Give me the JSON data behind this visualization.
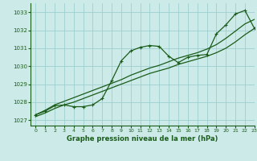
{
  "title": "Graphe pression niveau de la mer (hPa)",
  "bg_color": "#cceae7",
  "plot_bg_color": "#cceae7",
  "grid_color": "#9ecece",
  "line_color": "#1a5c1a",
  "ylim": [
    1026.7,
    1033.5
  ],
  "xlim": [
    -0.5,
    23
  ],
  "yticks": [
    1027,
    1028,
    1029,
    1030,
    1031,
    1032,
    1033
  ],
  "xticks": [
    0,
    1,
    2,
    3,
    4,
    5,
    6,
    7,
    8,
    9,
    10,
    11,
    12,
    13,
    14,
    15,
    16,
    17,
    18,
    19,
    20,
    21,
    22,
    23
  ],
  "x_data": [
    0,
    1,
    2,
    3,
    4,
    5,
    6,
    7,
    8,
    9,
    10,
    11,
    12,
    13,
    14,
    15,
    16,
    17,
    18,
    19,
    20,
    21,
    22,
    23
  ],
  "y_main": [
    1027.3,
    1027.5,
    1027.8,
    1027.85,
    1027.75,
    1027.75,
    1027.85,
    1028.2,
    1029.2,
    1030.3,
    1030.85,
    1031.05,
    1031.15,
    1031.1,
    1030.55,
    1030.2,
    1030.5,
    1030.6,
    1030.65,
    1031.8,
    1032.3,
    1032.9,
    1033.1,
    1032.1
  ],
  "y_smooth1": [
    1027.2,
    1027.4,
    1027.65,
    1027.85,
    1028.0,
    1028.2,
    1028.4,
    1028.6,
    1028.8,
    1029.0,
    1029.2,
    1029.4,
    1029.6,
    1029.75,
    1029.9,
    1030.1,
    1030.25,
    1030.4,
    1030.55,
    1030.75,
    1031.0,
    1031.35,
    1031.75,
    1032.1
  ],
  "y_smooth2": [
    1027.3,
    1027.55,
    1027.85,
    1028.05,
    1028.25,
    1028.45,
    1028.65,
    1028.85,
    1029.05,
    1029.25,
    1029.5,
    1029.7,
    1029.9,
    1030.05,
    1030.25,
    1030.45,
    1030.6,
    1030.75,
    1030.95,
    1031.2,
    1031.55,
    1031.95,
    1032.35,
    1032.6
  ]
}
